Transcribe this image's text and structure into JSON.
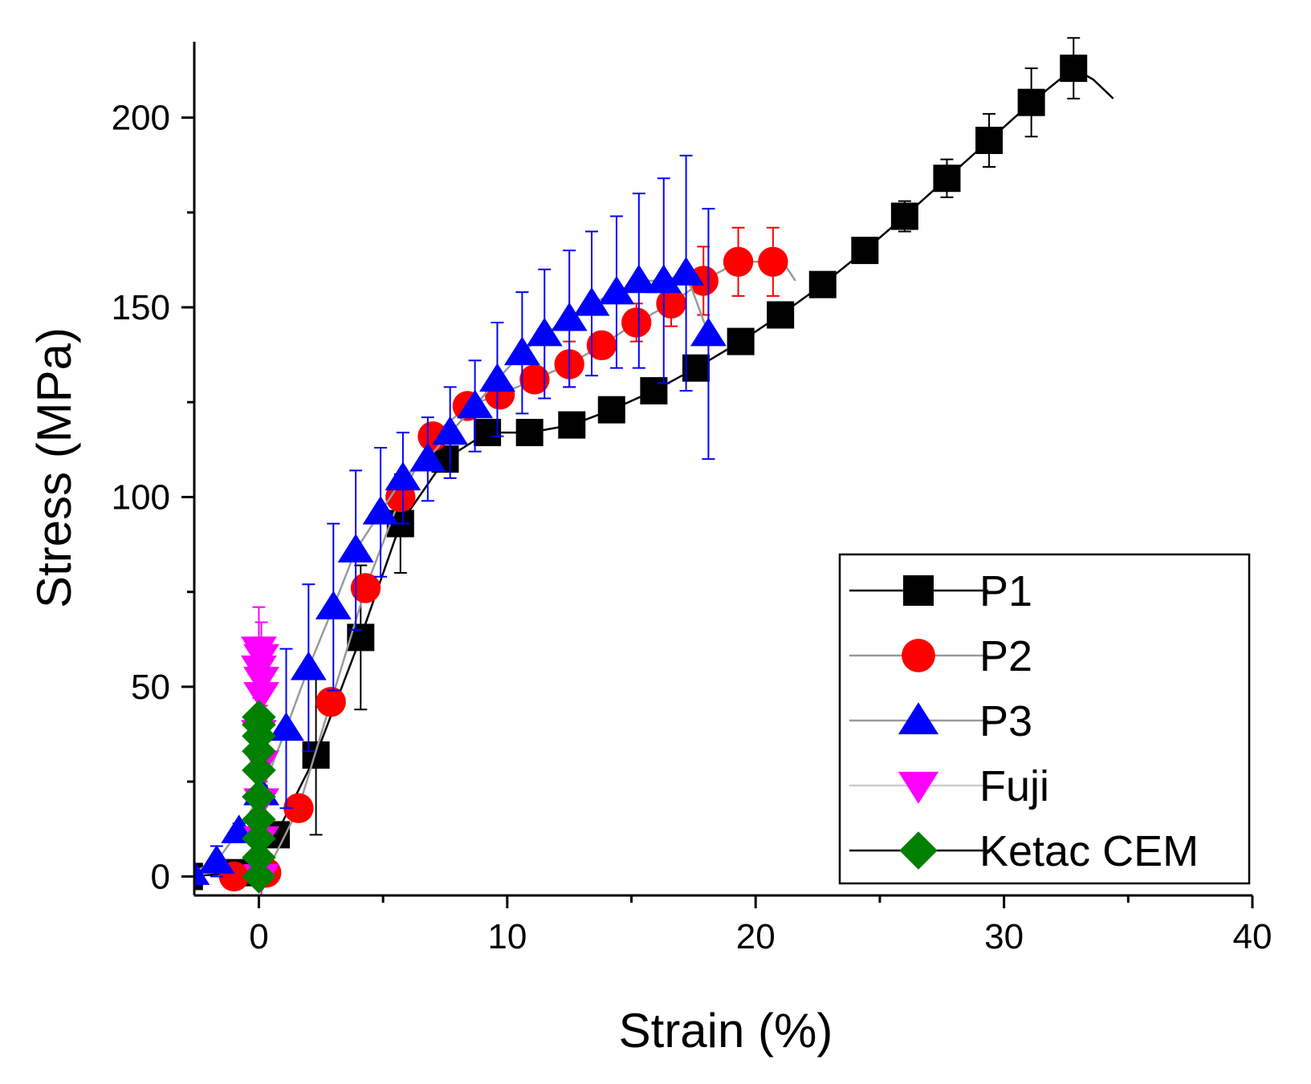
{
  "chart_data": {
    "type": "line",
    "title": "",
    "xlabel": "Strain (%)",
    "ylabel": "Stress (MPa)",
    "xlim": [
      -2.6,
      40
    ],
    "ylim": [
      -5,
      220
    ],
    "xticks": [
      0,
      10,
      20,
      30,
      40
    ],
    "xticks_minor": [
      5,
      15,
      25,
      35
    ],
    "yticks": [
      0,
      50,
      100,
      150,
      200
    ],
    "yticks_minor": [
      25,
      75,
      125,
      175
    ],
    "grid": false,
    "legend_position": "bottom-right",
    "legend_labels": [
      "P1",
      "P2",
      "P3",
      "Fuji",
      "Ketac CEM"
    ],
    "series": [
      {
        "name": "P1",
        "color": "#000000",
        "line_color": "#000000",
        "marker": "square",
        "points": [
          {
            "x": -2.8,
            "y": 0,
            "err": 1
          },
          {
            "x": -0.8,
            "y": 1,
            "err": 1
          },
          {
            "x": 0.7,
            "y": 11,
            "err": 2
          },
          {
            "x": 2.3,
            "y": 32,
            "err": 21
          },
          {
            "x": 4.1,
            "y": 63,
            "err": 19
          },
          {
            "x": 5.7,
            "y": 93,
            "err": 13
          },
          {
            "x": 7.5,
            "y": 110,
            "err": 3
          },
          {
            "x": 9.2,
            "y": 117,
            "err": 2
          },
          {
            "x": 10.9,
            "y": 117,
            "err": 2
          },
          {
            "x": 12.6,
            "y": 119,
            "err": 2
          },
          {
            "x": 14.2,
            "y": 123,
            "err": 2
          },
          {
            "x": 15.9,
            "y": 128,
            "err": 2
          },
          {
            "x": 17.6,
            "y": 134,
            "err": 2
          },
          {
            "x": 19.4,
            "y": 141,
            "err": 2
          },
          {
            "x": 21.0,
            "y": 148,
            "err": 2
          },
          {
            "x": 22.7,
            "y": 156,
            "err": 2
          },
          {
            "x": 24.4,
            "y": 165,
            "err": 2
          },
          {
            "x": 26.0,
            "y": 174,
            "err": 4
          },
          {
            "x": 27.7,
            "y": 184,
            "err": 5
          },
          {
            "x": 29.4,
            "y": 194,
            "err": 7
          },
          {
            "x": 31.1,
            "y": 204,
            "err": 9
          },
          {
            "x": 32.8,
            "y": 213,
            "err": 8
          }
        ],
        "tail": [
          {
            "x": 33.6,
            "y": 210
          },
          {
            "x": 34.4,
            "y": 205
          }
        ]
      },
      {
        "name": "P2",
        "color": "#ff0000",
        "line_color": "#999999",
        "marker": "circle",
        "points": [
          {
            "x": -1.0,
            "y": 0,
            "err": 1
          },
          {
            "x": 0.3,
            "y": 1,
            "err": 1
          },
          {
            "x": 1.6,
            "y": 18,
            "err": 2
          },
          {
            "x": 2.9,
            "y": 46,
            "err": 2
          },
          {
            "x": 4.3,
            "y": 76,
            "err": 2
          },
          {
            "x": 5.7,
            "y": 100,
            "err": 2
          },
          {
            "x": 7.0,
            "y": 116,
            "err": 2
          },
          {
            "x": 8.4,
            "y": 124,
            "err": 2
          },
          {
            "x": 9.7,
            "y": 127,
            "err": 2
          },
          {
            "x": 11.1,
            "y": 131,
            "err": 3
          },
          {
            "x": 12.5,
            "y": 135,
            "err": 6
          },
          {
            "x": 13.8,
            "y": 140,
            "err": 3
          },
          {
            "x": 15.2,
            "y": 146,
            "err": 5
          },
          {
            "x": 16.6,
            "y": 151,
            "err": 6
          },
          {
            "x": 17.9,
            "y": 157,
            "err": 9
          },
          {
            "x": 19.3,
            "y": 162,
            "err": 9
          },
          {
            "x": 20.7,
            "y": 162,
            "err": 9
          }
        ],
        "tail": [
          {
            "x": 21.2,
            "y": 161
          },
          {
            "x": 21.6,
            "y": 157
          }
        ]
      },
      {
        "name": "P3",
        "color": "#0000ff",
        "line_color": "#999999",
        "marker": "triangle-up",
        "points": [
          {
            "x": -2.7,
            "y": 1,
            "err": 1
          },
          {
            "x": -1.7,
            "y": 4,
            "err": 4
          },
          {
            "x": -0.8,
            "y": 12,
            "err": 2
          },
          {
            "x": 0.1,
            "y": 22,
            "err": 2
          },
          {
            "x": 1.1,
            "y": 39,
            "err": 21
          },
          {
            "x": 2.0,
            "y": 55,
            "err": 22
          },
          {
            "x": 3.0,
            "y": 71,
            "err": 22
          },
          {
            "x": 3.9,
            "y": 86,
            "err": 21
          },
          {
            "x": 4.9,
            "y": 96,
            "err": 17
          },
          {
            "x": 5.8,
            "y": 105,
            "err": 12
          },
          {
            "x": 6.8,
            "y": 110,
            "err": 11
          },
          {
            "x": 7.7,
            "y": 117,
            "err": 12
          },
          {
            "x": 8.7,
            "y": 124,
            "err": 12
          },
          {
            "x": 9.6,
            "y": 131,
            "err": 15
          },
          {
            "x": 10.6,
            "y": 138,
            "err": 16
          },
          {
            "x": 11.5,
            "y": 143,
            "err": 17
          },
          {
            "x": 12.5,
            "y": 147,
            "err": 18
          },
          {
            "x": 13.4,
            "y": 151,
            "err": 19
          },
          {
            "x": 14.4,
            "y": 154,
            "err": 20
          },
          {
            "x": 15.3,
            "y": 157,
            "err": 23
          },
          {
            "x": 16.3,
            "y": 157,
            "err": 27
          },
          {
            "x": 17.2,
            "y": 159,
            "err": 31
          },
          {
            "x": 18.1,
            "y": 143,
            "err": 33
          }
        ],
        "tail": []
      },
      {
        "name": "Fuji",
        "color": "#ff00ff",
        "line_color": "#cccccc",
        "marker": "triangle-down",
        "points": [
          {
            "x": 0.1,
            "y": 0,
            "err": 7
          },
          {
            "x": 0.1,
            "y": 10,
            "err": 5
          },
          {
            "x": 0.1,
            "y": 20,
            "err": 5
          },
          {
            "x": 0.1,
            "y": 30,
            "err": 5
          },
          {
            "x": 0.0,
            "y": 38,
            "err": 5
          },
          {
            "x": 0.1,
            "y": 48,
            "err": 6
          },
          {
            "x": 0.1,
            "y": 52,
            "err": 7
          },
          {
            "x": 0.0,
            "y": 55,
            "err": 8
          },
          {
            "x": 0.1,
            "y": 58,
            "err": 9
          },
          {
            "x": 0.0,
            "y": 60,
            "err": 11
          }
        ],
        "tail": []
      },
      {
        "name": "Ketac CEM",
        "color": "#008000",
        "line_color": "#000000",
        "marker": "diamond",
        "points": [
          {
            "x": 0.0,
            "y": 0,
            "err": 0
          },
          {
            "x": 0.0,
            "y": 5,
            "err": 0
          },
          {
            "x": 0.0,
            "y": 10,
            "err": 0
          },
          {
            "x": 0.0,
            "y": 15,
            "err": 0
          },
          {
            "x": 0.0,
            "y": 21,
            "err": 0
          },
          {
            "x": 0.0,
            "y": 28,
            "err": 0
          },
          {
            "x": 0.0,
            "y": 33,
            "err": 0
          },
          {
            "x": 0.0,
            "y": 37,
            "err": 0
          },
          {
            "x": 0.0,
            "y": 40,
            "err": 0
          },
          {
            "x": 0.0,
            "y": 42,
            "err": 0
          }
        ],
        "tail": []
      }
    ]
  }
}
